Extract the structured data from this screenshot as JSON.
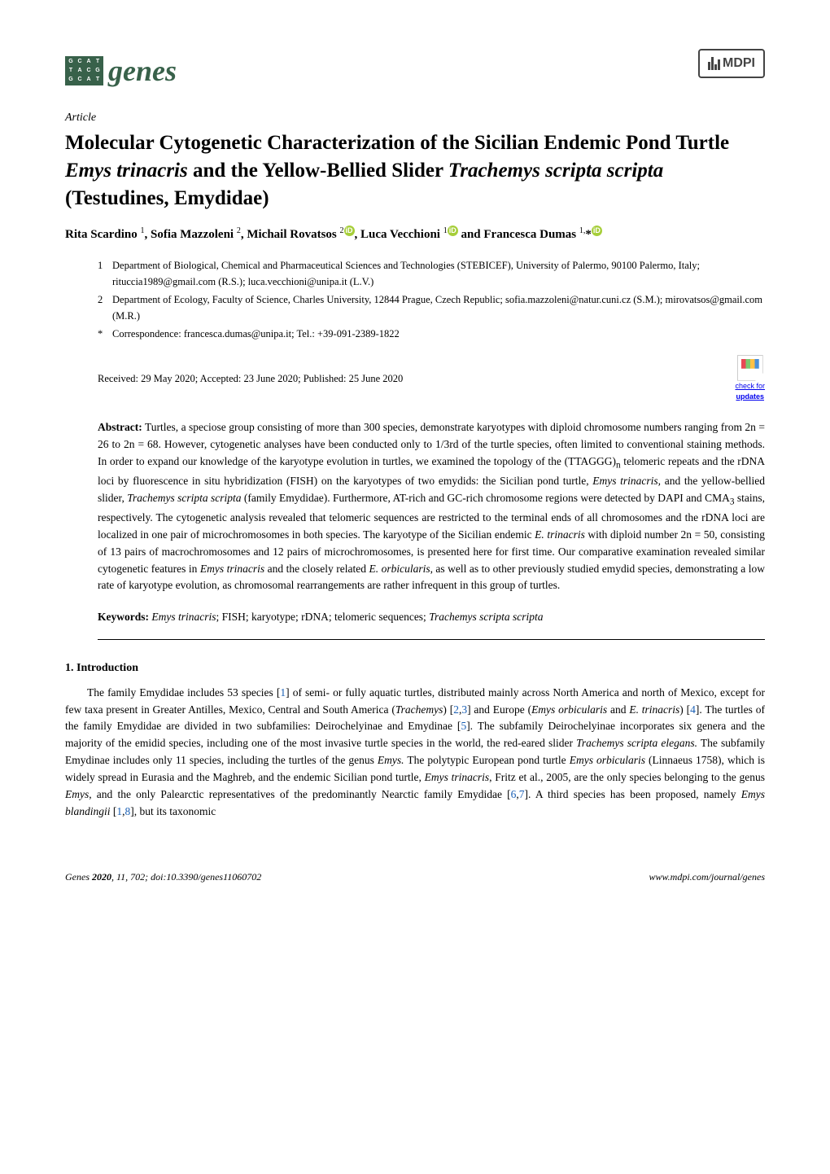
{
  "journal": {
    "name": "genes",
    "logo_letters": [
      "G",
      "C",
      "A",
      "T",
      "T",
      "A",
      "C",
      "G",
      "G",
      "C",
      "A",
      "T"
    ],
    "logo_bg_color": "#38614a",
    "publisher": "MDPI"
  },
  "article": {
    "type_label": "Article",
    "title_html": "Molecular Cytogenetic Characterization of the Sicilian Endemic Pond Turtle <em>Emys trinacris</em> and the Yellow-Bellied Slider <em>Trachemys scripta scripta</em> (Testudines, Emydidae)",
    "authors_html": "Rita Scardino <sup>1</sup>, Sofia Mazzoleni <sup>2</sup>, Michail Rovatsos <sup>2</sup><span class='orcid'>iD</span>, Luca Vecchioni <sup>1</sup><span class='orcid'>iD</span> and Francesca Dumas <sup>1,</sup>*<span class='orcid'>iD</span>",
    "affiliations": [
      {
        "num": "1",
        "text": "Department of Biological, Chemical and Pharmaceutical Sciences and Technologies (STEBICEF), University of Palermo, 90100 Palermo, Italy; rituccia1989@gmail.com (R.S.); luca.vecchioni@unipa.it (L.V.)"
      },
      {
        "num": "2",
        "text": "Department of Ecology, Faculty of Science, Charles University, 12844 Prague, Czech Republic; sofia.mazzoleni@natur.cuni.cz (S.M.); mirovatsos@gmail.com (M.R.)"
      },
      {
        "num": "*",
        "text": "Correspondence: francesca.dumas@unipa.it; Tel.: +39-091-2389-1822"
      }
    ],
    "dates": "Received: 29 May 2020; Accepted: 23 June 2020; Published: 25 June 2020",
    "check_updates_label": "check for",
    "check_updates_label2": "updates",
    "abstract_label": "Abstract:",
    "abstract_html": "Turtles, a speciose group consisting of more than 300 species, demonstrate karyotypes with diploid chromosome numbers ranging from 2n = 26 to 2n = 68. However, cytogenetic analyses have been conducted only to 1/3rd of the turtle species, often limited to conventional staining methods. In order to expand our knowledge of the karyotype evolution in turtles, we examined the topology of the (TTAGGG)<sub>n</sub> telomeric repeats and the rDNA loci by fluorescence in situ hybridization (FISH) on the karyotypes of two emydids: the Sicilian pond turtle, <em>Emys trinacris,</em> and the yellow-bellied slider, <em>Trachemys scripta scripta</em> (family Emydidae). Furthermore, AT-rich and GC-rich chromosome regions were detected by DAPI and CMA<sub>3</sub> stains, respectively. The cytogenetic analysis revealed that telomeric sequences are restricted to the terminal ends of all chromosomes and the rDNA loci are localized in one pair of microchromosomes in both species. The karyotype of the Sicilian endemic <em>E. trinacris</em> with diploid number 2n = 50, consisting of 13 pairs of macrochromosomes and 12 pairs of microchromosomes, is presented here for first time. Our comparative examination revealed similar cytogenetic features in <em>Emys trinacris</em> and the closely related <em>E. orbicularis</em>, as well as to other previously studied emydid species, demonstrating a low rate of karyotype evolution, as chromosomal rearrangements are rather infrequent in this group of turtles.",
    "keywords_label": "Keywords:",
    "keywords_html": "<em>Emys trinacris</em>; FISH; karyotype; rDNA; telomeric sequences; <em>Trachemys scripta scripta</em>"
  },
  "section1": {
    "heading": "1. Introduction",
    "body_html": "The family Emydidae includes 53 species [<a href='#'>1</a>] of semi- or fully aquatic turtles, distributed mainly across North America and north of Mexico, except for few taxa present in Greater Antilles, Mexico, Central and South America (<em>Trachemys</em>) [<a href='#'>2</a>,<a href='#'>3</a>] and Europe (<em>Emys orbicularis</em> and <em>E. trinacris</em>) [<a href='#'>4</a>]. The turtles of the family Emydidae are divided in two subfamilies: Deirochelyinae and Emydinae [<a href='#'>5</a>]. The subfamily Deirochelyinae incorporates six genera and the majority of the emidid species, including one of the most invasive turtle species in the world, the red-eared slider <em>Trachemys scripta elegans.</em> The subfamily Emydinae includes only 11 species, including the turtles of the genus <em>Emys.</em> The polytypic European pond turtle <em>Emys orbicularis</em> (Linnaeus 1758), which is widely spread in Eurasia and the Maghreb, and the endemic Sicilian pond turtle, <em>Emys trinacris</em>, Fritz et al., 2005, are the only species belonging to the genus <em>Emys</em>, and the only Palearctic representatives of the predominantly Nearctic family Emydidae [<a href='#'>6</a>,<a href='#'>7</a>]. A third species has been proposed, namely <em>Emys blandingii</em> [<a href='#'>1</a>,<a href='#'>8</a>], but its taxonomic"
  },
  "footer": {
    "left_html": "<em>Genes</em> <strong>2020</strong>, <em>11</em>, 702; doi:10.3390/genes11060702",
    "right": "www.mdpi.com/journal/genes"
  },
  "colors": {
    "link": "#1a5fb4",
    "orcid": "#a6ce39",
    "logo_green": "#38614a"
  }
}
